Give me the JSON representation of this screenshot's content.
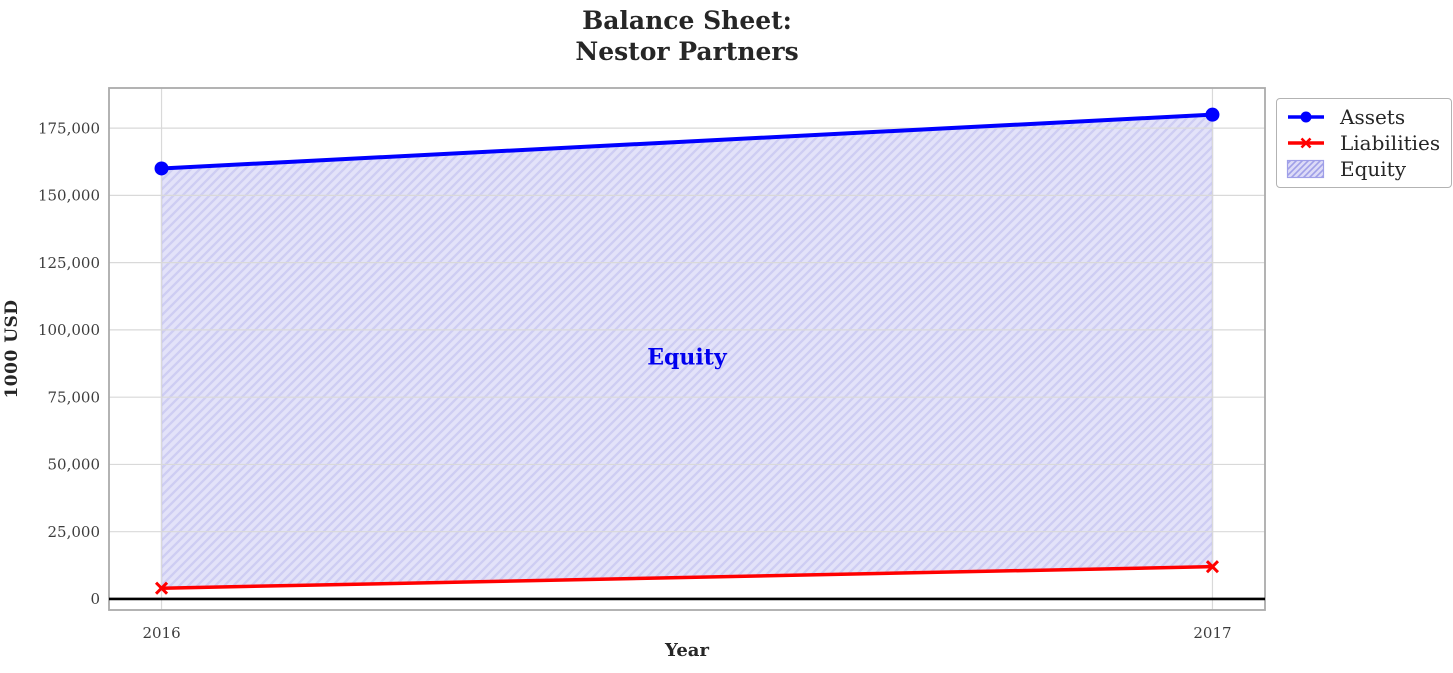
{
  "title": {
    "line1": "Balance Sheet:",
    "line2": "Nestor Partners"
  },
  "chart_data": {
    "type": "line",
    "title": "Balance Sheet:\nNestor Partners",
    "xlabel": "Year",
    "ylabel": "1000 USD",
    "x": [
      2016,
      2017
    ],
    "series": [
      {
        "name": "Assets",
        "values": [
          160000,
          180000
        ],
        "color": "#0000ff",
        "marker": "circle",
        "line_width": 4
      },
      {
        "name": "Liabilities",
        "values": [
          4000,
          12000
        ],
        "color": "#ff0000",
        "marker": "x",
        "line_width": 3.5
      }
    ],
    "fill_between": {
      "label": "Equity",
      "upper_series": "Assets",
      "lower_series": "Liabilities",
      "facecolor": "#e3e2f9",
      "hatch": "/",
      "hatch_color": "#cecdf3",
      "edge_color": "#b9b8ee"
    },
    "annotation": {
      "text": "Equity",
      "x": 2016.5,
      "y": 90000,
      "color": "#0000ee"
    },
    "xlim": [
      2015.95,
      2017.05
    ],
    "ylim": [
      -4100,
      189900
    ],
    "xticks": [
      2016,
      2017
    ],
    "xtick_labels": [
      "2016",
      "2017"
    ],
    "yticks": [
      0,
      25000,
      50000,
      75000,
      100000,
      125000,
      150000,
      175000
    ],
    "ytick_labels": [
      "0",
      "25,000",
      "50,000",
      "75,000",
      "100,000",
      "125,000",
      "150,000",
      "175,000"
    ],
    "grid": true,
    "zero_line": true,
    "legend_position": "outside upper right",
    "style": {
      "grid_color": "#d9d9d9",
      "frame_color": "#ababab",
      "tick_color": "#3d3d3d",
      "title_color": "#262626",
      "zero_line_color": "#000000",
      "background": "#ffffff",
      "legend_patch_facecolor": "#dcdbf7",
      "legend_patch_hatch_color": "#9f9fe8"
    }
  }
}
